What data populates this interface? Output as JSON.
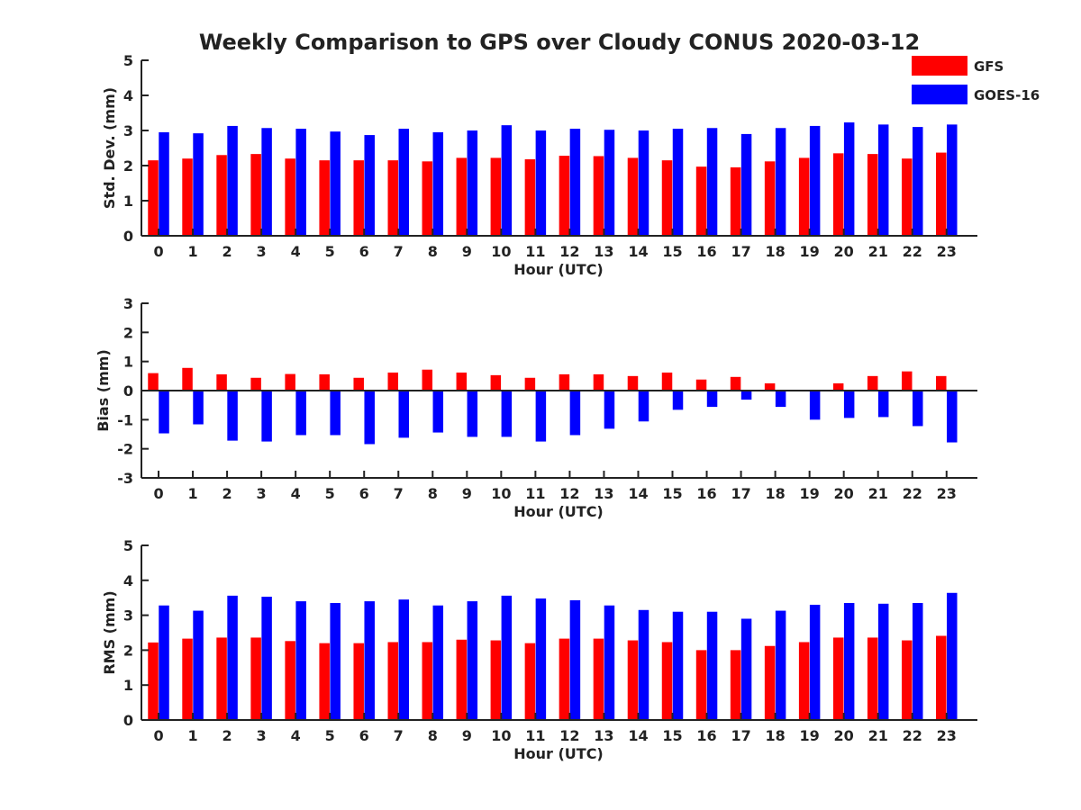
{
  "figure_title": "Weekly Comparison to GPS over Cloudy CONUS 2020-03-12",
  "legend": [
    {
      "label": "GFS",
      "color": "#ff0000"
    },
    {
      "label": "GOES-16",
      "color": "#0000ff"
    }
  ],
  "chart_data": [
    {
      "type": "bar",
      "xlabel": "Hour (UTC)",
      "ylabel": "Std. Dev. (mm)",
      "ylim": [
        0,
        5
      ],
      "yticks": [
        0,
        1,
        2,
        3,
        4,
        5
      ],
      "legend_position": "top-right",
      "grid": false,
      "categories": [
        "0",
        "1",
        "2",
        "3",
        "4",
        "5",
        "6",
        "7",
        "8",
        "9",
        "10",
        "11",
        "12",
        "13",
        "14",
        "15",
        "16",
        "17",
        "18",
        "19",
        "20",
        "21",
        "22",
        "23"
      ],
      "series": [
        {
          "name": "GFS",
          "color": "#ff0000",
          "values": [
            2.15,
            2.2,
            2.3,
            2.33,
            2.2,
            2.15,
            2.15,
            2.15,
            2.12,
            2.22,
            2.22,
            2.18,
            2.28,
            2.27,
            2.22,
            2.15,
            1.97,
            1.95,
            2.12,
            2.22,
            2.35,
            2.33,
            2.2,
            2.37
          ]
        },
        {
          "name": "GOES-16",
          "color": "#0000ff",
          "values": [
            2.95,
            2.92,
            3.13,
            3.07,
            3.05,
            2.97,
            2.87,
            3.05,
            2.95,
            3.0,
            3.15,
            3.0,
            3.05,
            3.02,
            3.0,
            3.05,
            3.07,
            2.9,
            3.07,
            3.13,
            3.23,
            3.17,
            3.1,
            3.17
          ]
        }
      ]
    },
    {
      "type": "bar",
      "xlabel": "Hour (UTC)",
      "ylabel": "Bias (mm)",
      "ylim": [
        -3,
        3
      ],
      "yticks": [
        -3,
        -2,
        -1,
        0,
        1,
        2,
        3
      ],
      "grid": false,
      "zero_line": true,
      "categories": [
        "0",
        "1",
        "2",
        "3",
        "4",
        "5",
        "6",
        "7",
        "8",
        "9",
        "10",
        "11",
        "12",
        "13",
        "14",
        "15",
        "16",
        "17",
        "18",
        "19",
        "20",
        "21",
        "22",
        "23"
      ],
      "series": [
        {
          "name": "GFS",
          "color": "#ff0000",
          "values": [
            0.6,
            0.78,
            0.56,
            0.44,
            0.57,
            0.56,
            0.44,
            0.62,
            0.72,
            0.62,
            0.53,
            0.44,
            0.56,
            0.56,
            0.5,
            0.62,
            0.38,
            0.47,
            0.25,
            0.0,
            0.25,
            0.5,
            0.66,
            0.5
          ]
        },
        {
          "name": "GOES-16",
          "color": "#0000ff",
          "values": [
            -1.47,
            -1.16,
            -1.72,
            -1.75,
            -1.53,
            -1.53,
            -1.84,
            -1.62,
            -1.44,
            -1.59,
            -1.59,
            -1.75,
            -1.53,
            -1.31,
            -1.06,
            -0.66,
            -0.56,
            -0.31,
            -0.56,
            -1.0,
            -0.94,
            -0.91,
            -1.22,
            -1.78
          ]
        }
      ]
    },
    {
      "type": "bar",
      "xlabel": "Hour (UTC)",
      "ylabel": "RMS (mm)",
      "ylim": [
        0,
        5
      ],
      "yticks": [
        0,
        1,
        2,
        3,
        4,
        5
      ],
      "grid": false,
      "categories": [
        "0",
        "1",
        "2",
        "3",
        "4",
        "5",
        "6",
        "7",
        "8",
        "9",
        "10",
        "11",
        "12",
        "13",
        "14",
        "15",
        "16",
        "17",
        "18",
        "19",
        "20",
        "21",
        "22",
        "23"
      ],
      "series": [
        {
          "name": "GFS",
          "color": "#ff0000",
          "values": [
            2.22,
            2.33,
            2.36,
            2.36,
            2.26,
            2.2,
            2.2,
            2.23,
            2.23,
            2.3,
            2.28,
            2.2,
            2.33,
            2.33,
            2.28,
            2.23,
            2.0,
            2.0,
            2.12,
            2.23,
            2.36,
            2.36,
            2.28,
            2.41
          ]
        },
        {
          "name": "GOES-16",
          "color": "#0000ff",
          "values": [
            3.28,
            3.13,
            3.56,
            3.53,
            3.4,
            3.35,
            3.4,
            3.45,
            3.28,
            3.4,
            3.56,
            3.48,
            3.43,
            3.28,
            3.15,
            3.1,
            3.1,
            2.9,
            3.13,
            3.3,
            3.35,
            3.33,
            3.35,
            3.64
          ]
        }
      ]
    }
  ]
}
